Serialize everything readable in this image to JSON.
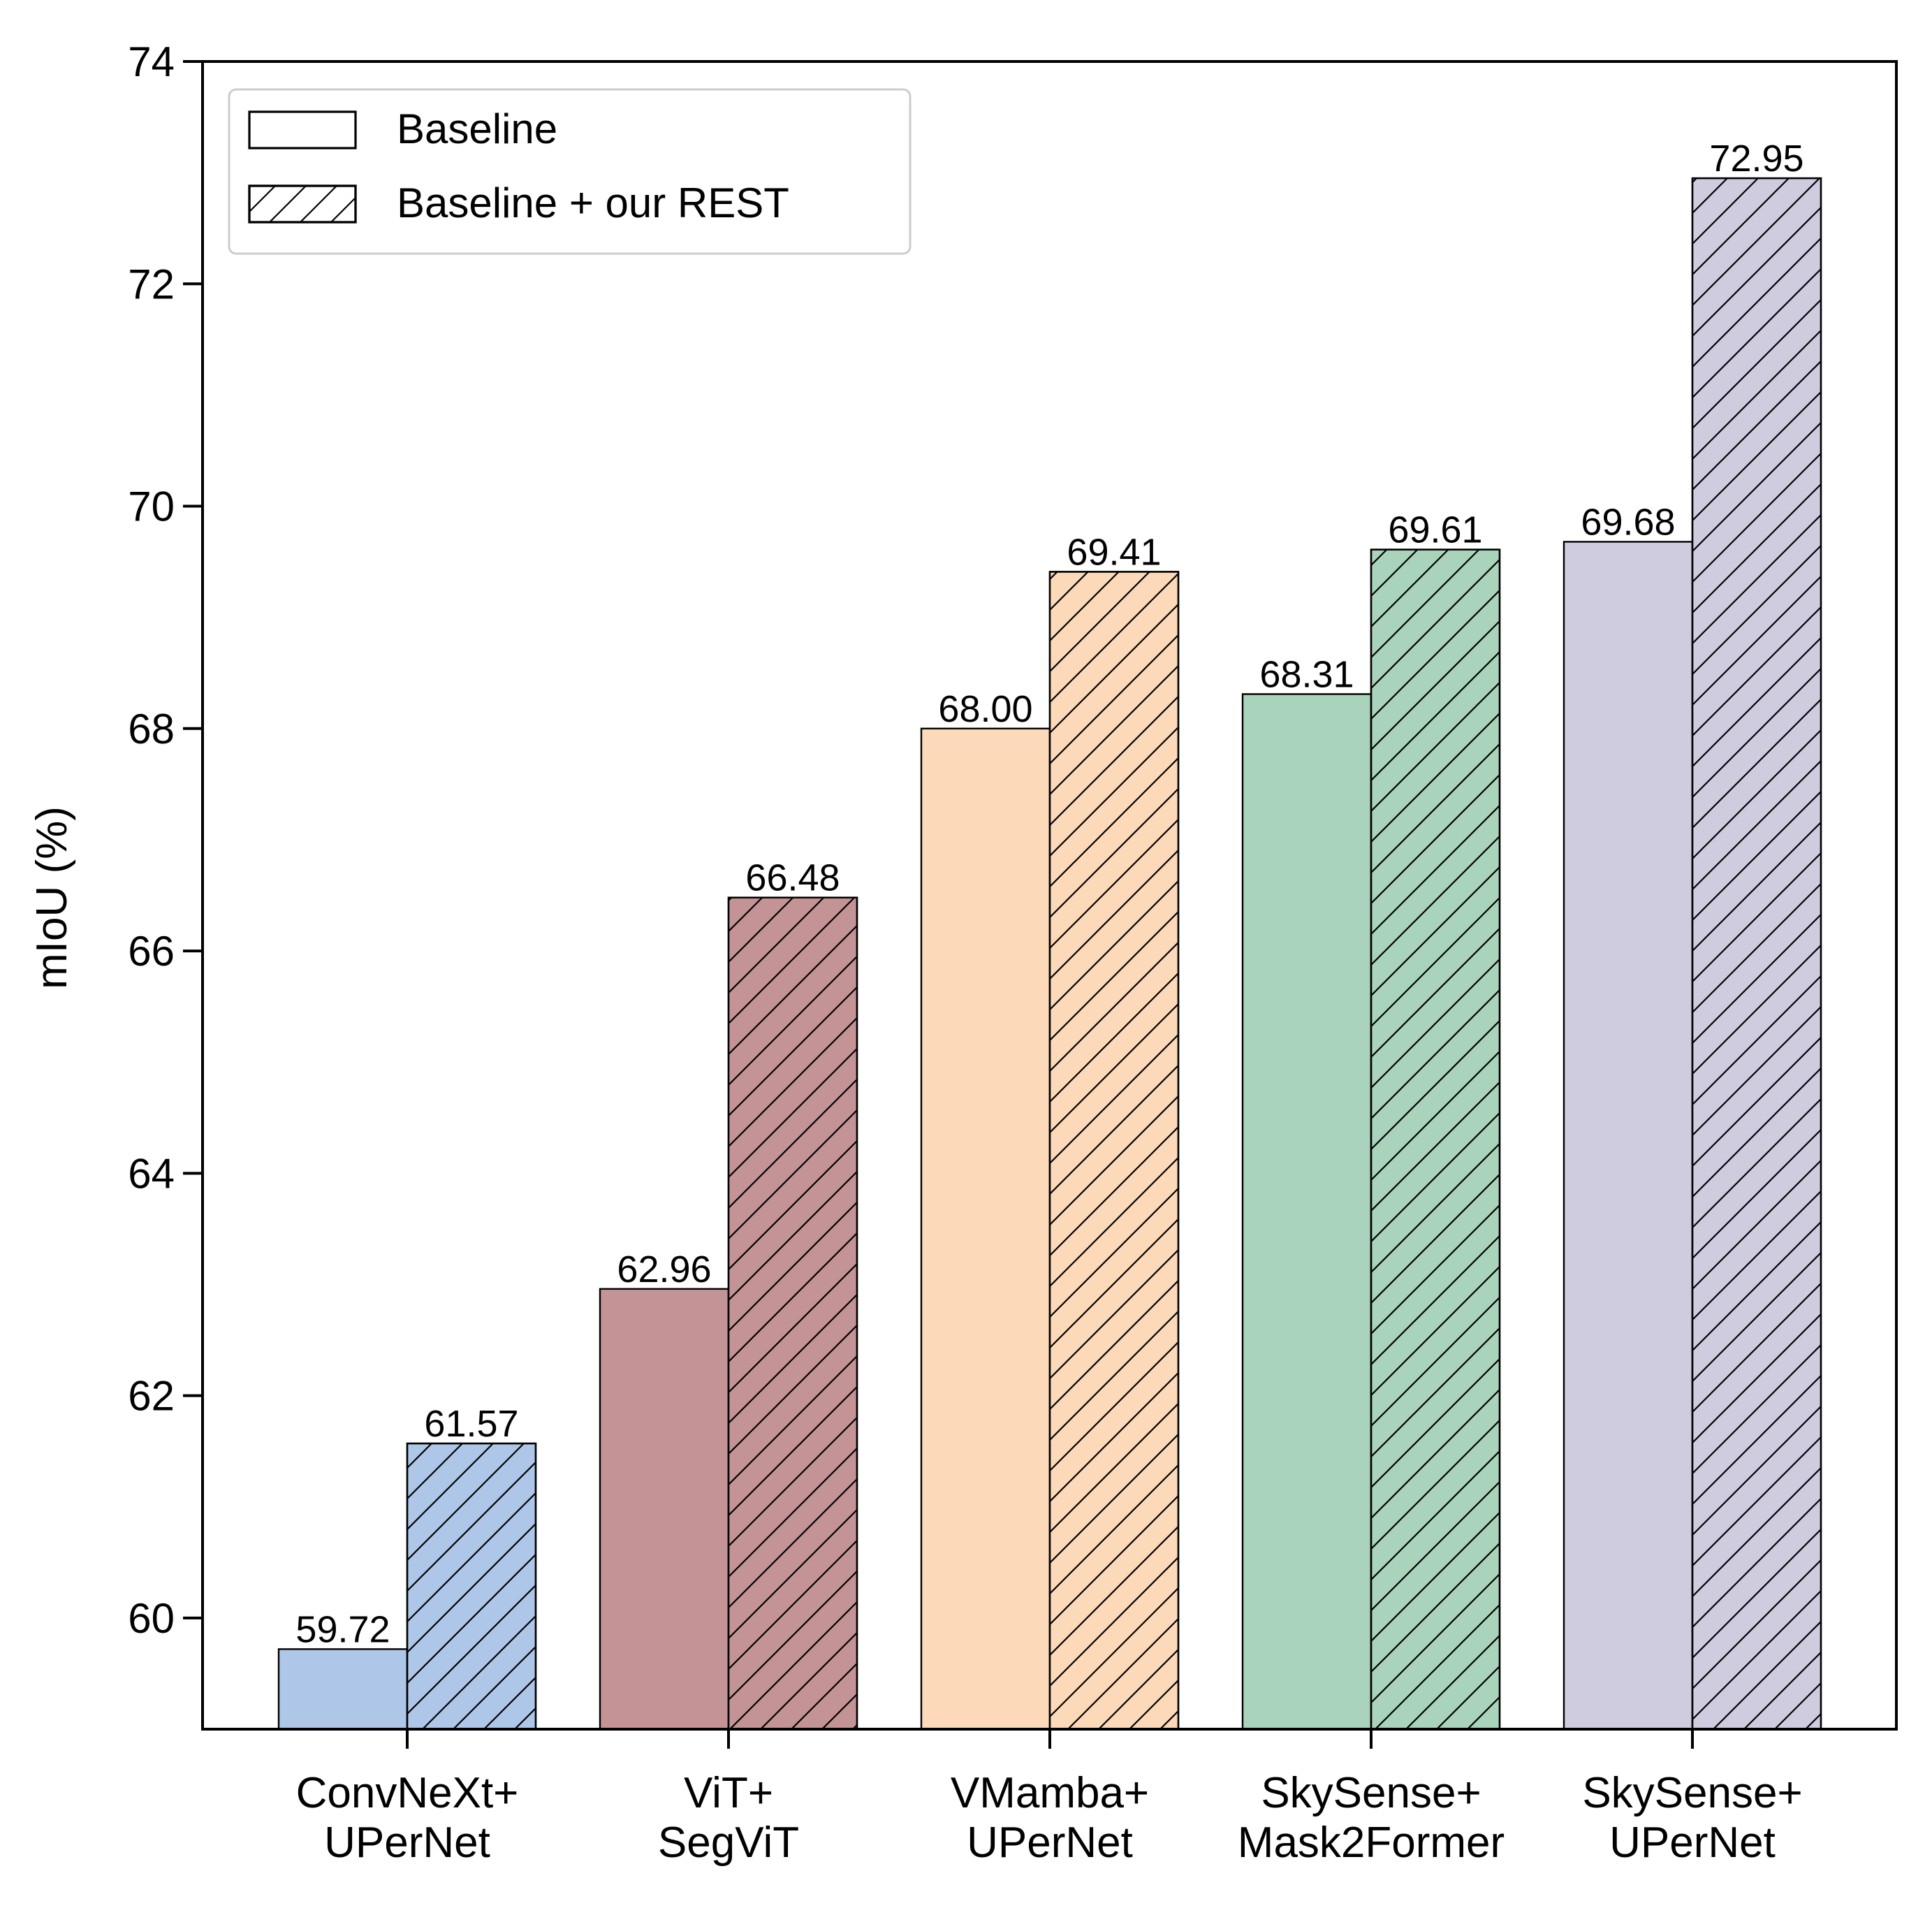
{
  "chart_data": {
    "type": "bar",
    "title": "",
    "xlabel": "",
    "ylabel": "mIoU (%)",
    "ylim": [
      59,
      74
    ],
    "yticks": [
      60,
      62,
      64,
      66,
      68,
      70,
      72,
      74
    ],
    "grid": false,
    "legend": {
      "placement": "top-left",
      "entries": [
        "Baseline",
        "Baseline + our REST"
      ]
    },
    "categories": [
      [
        "ConvNeXt+",
        "UPerNet"
      ],
      [
        "ViT+",
        "SegViT"
      ],
      [
        "VMamba+",
        "UPerNet"
      ],
      [
        "SkySense+",
        "Mask2Former"
      ],
      [
        "SkySense+",
        "UPerNet"
      ]
    ],
    "series": [
      {
        "name": "Baseline",
        "hatch": false,
        "values": [
          59.72,
          62.96,
          68.0,
          68.31,
          69.68
        ]
      },
      {
        "name": "Baseline + our REST",
        "hatch": true,
        "values": [
          61.57,
          66.48,
          69.41,
          69.61,
          72.95
        ]
      }
    ],
    "value_labels": [
      [
        "59.72",
        "62.96",
        "68.00",
        "68.31",
        "69.68"
      ],
      [
        "61.57",
        "66.48",
        "69.41",
        "69.61",
        "72.95"
      ]
    ],
    "colors": [
      "#aec7e8",
      "#c49396",
      "#fcd9b9",
      "#a9d3bb",
      "#d0cce0"
    ]
  }
}
